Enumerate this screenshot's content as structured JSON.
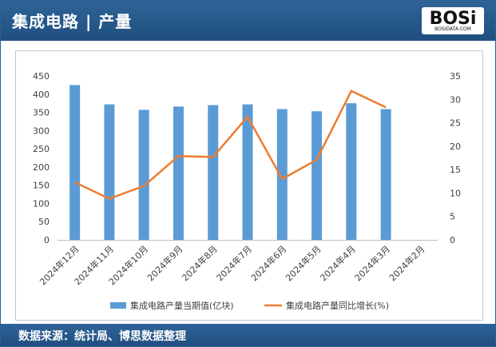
{
  "header": {
    "title": "集成电路 | 产量"
  },
  "logo": {
    "text": "BOSi",
    "subtext": "BOSIDATA.COM"
  },
  "footer": {
    "source": "数据来源：统计局、博思数据整理"
  },
  "chart_data": {
    "type": "bar",
    "categories": [
      "2024年12月",
      "2024年11月",
      "2024年10月",
      "2024年9月",
      "2024年8月",
      "2024年7月",
      "2024年6月",
      "2024年5月",
      "2024年4月",
      "2024年3月",
      "2024年2月"
    ],
    "series": [
      {
        "name": "集成电路产量当期值(亿块)",
        "type": "bar",
        "axis": "left",
        "color": "#5b9bd5",
        "values": [
          425,
          372,
          357,
          366,
          370,
          372,
          359,
          353,
          375,
          359,
          null
        ]
      },
      {
        "name": "集成电路产量同比增长(%)",
        "type": "line",
        "axis": "right",
        "color": "#ed7d31",
        "values": [
          12.3,
          8.8,
          11.5,
          17.9,
          17.7,
          26.3,
          13.0,
          17.1,
          31.8,
          28.3,
          null
        ]
      }
    ],
    "ylim_left": [
      0,
      450
    ],
    "yticks_left": [
      0,
      50,
      100,
      150,
      200,
      250,
      300,
      350,
      400,
      450
    ],
    "ylim_right": [
      0,
      35
    ],
    "yticks_right": [
      0,
      5,
      10,
      15,
      20,
      25,
      30,
      35
    ],
    "grid": false,
    "legend": "bottom"
  }
}
